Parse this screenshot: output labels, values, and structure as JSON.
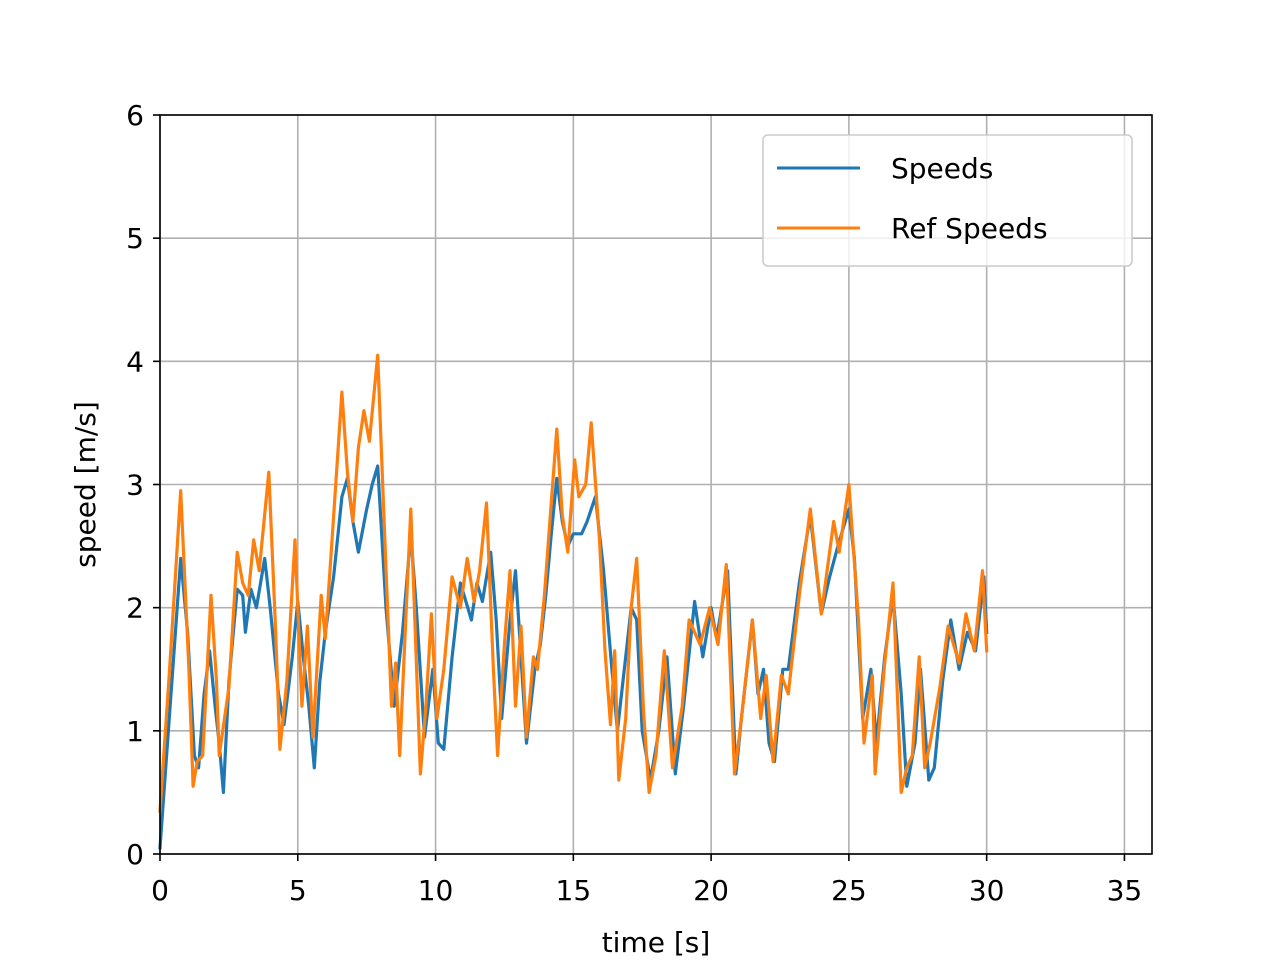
{
  "chart_data": {
    "type": "line",
    "title": "",
    "xlabel": "time [s]",
    "ylabel": "speed [m/s]",
    "xlim": [
      0,
      36
    ],
    "ylim": [
      0,
      6
    ],
    "xticks": [
      0,
      5,
      10,
      15,
      20,
      25,
      30,
      35
    ],
    "yticks": [
      0,
      1,
      2,
      3,
      4,
      5,
      6
    ],
    "xtick_labels": [
      "0",
      "5",
      "10",
      "15",
      "20",
      "25",
      "30",
      "35"
    ],
    "ytick_labels": [
      "0",
      "1",
      "2",
      "3",
      "4",
      "5",
      "6"
    ],
    "grid": true,
    "legend_position": "top-right",
    "series": [
      {
        "name": "Speeds",
        "color": "#1f77b4",
        "points": [
          [
            0,
            0.05
          ],
          [
            0.4,
            1.3
          ],
          [
            0.75,
            2.4
          ],
          [
            1.0,
            1.8
          ],
          [
            1.25,
            0.8
          ],
          [
            1.4,
            0.7
          ],
          [
            1.6,
            1.3
          ],
          [
            1.8,
            1.65
          ],
          [
            2.0,
            1.2
          ],
          [
            2.15,
            0.9
          ],
          [
            2.3,
            0.5
          ],
          [
            2.5,
            1.4
          ],
          [
            2.8,
            2.15
          ],
          [
            3.0,
            2.1
          ],
          [
            3.1,
            1.8
          ],
          [
            3.3,
            2.15
          ],
          [
            3.5,
            2.0
          ],
          [
            3.8,
            2.4
          ],
          [
            4.0,
            2.0
          ],
          [
            4.3,
            1.3
          ],
          [
            4.5,
            1.05
          ],
          [
            4.8,
            1.6
          ],
          [
            5.0,
            2.05
          ],
          [
            5.2,
            1.6
          ],
          [
            5.4,
            1.2
          ],
          [
            5.6,
            0.7
          ],
          [
            5.8,
            1.4
          ],
          [
            6.0,
            1.8
          ],
          [
            6.3,
            2.25
          ],
          [
            6.6,
            2.9
          ],
          [
            6.8,
            3.05
          ],
          [
            7.0,
            2.7
          ],
          [
            7.2,
            2.45
          ],
          [
            7.5,
            2.8
          ],
          [
            7.7,
            3.0
          ],
          [
            7.9,
            3.15
          ],
          [
            8.2,
            2.0
          ],
          [
            8.5,
            1.2
          ],
          [
            8.8,
            1.8
          ],
          [
            9.1,
            2.6
          ],
          [
            9.3,
            2.0
          ],
          [
            9.6,
            0.95
          ],
          [
            9.9,
            1.5
          ],
          [
            10.1,
            0.9
          ],
          [
            10.3,
            0.85
          ],
          [
            10.6,
            1.6
          ],
          [
            10.9,
            2.2
          ],
          [
            11.1,
            2.05
          ],
          [
            11.3,
            1.9
          ],
          [
            11.5,
            2.2
          ],
          [
            11.7,
            2.05
          ],
          [
            12.0,
            2.45
          ],
          [
            12.2,
            1.9
          ],
          [
            12.4,
            1.1
          ],
          [
            12.7,
            1.9
          ],
          [
            12.9,
            2.3
          ],
          [
            13.1,
            1.6
          ],
          [
            13.3,
            0.9
          ],
          [
            13.6,
            1.5
          ],
          [
            13.8,
            1.7
          ],
          [
            14.0,
            2.1
          ],
          [
            14.2,
            2.6
          ],
          [
            14.4,
            3.05
          ],
          [
            14.6,
            2.7
          ],
          [
            14.8,
            2.5
          ],
          [
            15.0,
            2.6
          ],
          [
            15.3,
            2.6
          ],
          [
            15.5,
            2.7
          ],
          [
            15.8,
            2.9
          ],
          [
            16.1,
            2.3
          ],
          [
            16.4,
            1.5
          ],
          [
            16.6,
            1.0
          ],
          [
            16.9,
            1.6
          ],
          [
            17.1,
            2.0
          ],
          [
            17.3,
            1.9
          ],
          [
            17.5,
            1.0
          ],
          [
            17.8,
            0.6
          ],
          [
            18.1,
            1.0
          ],
          [
            18.4,
            1.6
          ],
          [
            18.7,
            0.65
          ],
          [
            19.0,
            1.2
          ],
          [
            19.4,
            2.05
          ],
          [
            19.7,
            1.6
          ],
          [
            20.0,
            2.0
          ],
          [
            20.2,
            1.75
          ],
          [
            20.6,
            2.3
          ],
          [
            20.9,
            0.65
          ],
          [
            21.1,
            1.1
          ],
          [
            21.5,
            1.9
          ],
          [
            21.7,
            1.3
          ],
          [
            21.9,
            1.5
          ],
          [
            22.1,
            0.9
          ],
          [
            22.3,
            0.75
          ],
          [
            22.6,
            1.5
          ],
          [
            22.8,
            1.5
          ],
          [
            23.2,
            2.2
          ],
          [
            23.6,
            2.75
          ],
          [
            24.0,
            1.95
          ],
          [
            24.3,
            2.25
          ],
          [
            24.6,
            2.5
          ],
          [
            25.0,
            2.8
          ],
          [
            25.2,
            2.4
          ],
          [
            25.5,
            1.1
          ],
          [
            25.8,
            1.5
          ],
          [
            26.0,
            0.9
          ],
          [
            26.3,
            1.6
          ],
          [
            26.6,
            2.1
          ],
          [
            26.9,
            1.3
          ],
          [
            27.1,
            0.55
          ],
          [
            27.4,
            0.9
          ],
          [
            27.6,
            1.5
          ],
          [
            27.9,
            0.6
          ],
          [
            28.1,
            0.7
          ],
          [
            28.4,
            1.4
          ],
          [
            28.7,
            1.9
          ],
          [
            29.0,
            1.5
          ],
          [
            29.3,
            1.8
          ],
          [
            29.6,
            1.65
          ],
          [
            29.9,
            2.25
          ],
          [
            30.0,
            1.8
          ]
        ]
      },
      {
        "name": "Ref Speeds",
        "color": "#ff7f0e",
        "points": [
          [
            0,
            0.35
          ],
          [
            0.35,
            1.5
          ],
          [
            0.75,
            2.95
          ],
          [
            1.05,
            1.5
          ],
          [
            1.2,
            0.55
          ],
          [
            1.35,
            0.75
          ],
          [
            1.55,
            0.8
          ],
          [
            1.85,
            2.1
          ],
          [
            2.05,
            1.4
          ],
          [
            2.15,
            0.8
          ],
          [
            2.5,
            1.35
          ],
          [
            2.8,
            2.45
          ],
          [
            3.0,
            2.2
          ],
          [
            3.2,
            2.1
          ],
          [
            3.4,
            2.55
          ],
          [
            3.6,
            2.3
          ],
          [
            3.95,
            3.1
          ],
          [
            4.2,
            1.8
          ],
          [
            4.35,
            0.85
          ],
          [
            4.6,
            1.4
          ],
          [
            4.9,
            2.55
          ],
          [
            5.15,
            1.2
          ],
          [
            5.35,
            1.85
          ],
          [
            5.55,
            0.95
          ],
          [
            5.85,
            2.1
          ],
          [
            6.0,
            1.75
          ],
          [
            6.2,
            2.4
          ],
          [
            6.6,
            3.75
          ],
          [
            6.8,
            3.1
          ],
          [
            7.0,
            2.7
          ],
          [
            7.2,
            3.3
          ],
          [
            7.4,
            3.6
          ],
          [
            7.6,
            3.35
          ],
          [
            7.9,
            4.05
          ],
          [
            8.15,
            2.6
          ],
          [
            8.4,
            1.2
          ],
          [
            8.55,
            1.55
          ],
          [
            8.7,
            0.8
          ],
          [
            8.9,
            1.8
          ],
          [
            9.1,
            2.8
          ],
          [
            9.45,
            0.65
          ],
          [
            9.65,
            1.2
          ],
          [
            9.85,
            1.95
          ],
          [
            10.05,
            1.1
          ],
          [
            10.3,
            1.5
          ],
          [
            10.6,
            2.25
          ],
          [
            10.9,
            2.0
          ],
          [
            11.15,
            2.4
          ],
          [
            11.4,
            2.05
          ],
          [
            11.6,
            2.3
          ],
          [
            11.85,
            2.85
          ],
          [
            12.1,
            1.5
          ],
          [
            12.25,
            0.8
          ],
          [
            12.5,
            1.7
          ],
          [
            12.7,
            2.3
          ],
          [
            12.9,
            1.2
          ],
          [
            13.1,
            1.85
          ],
          [
            13.3,
            0.95
          ],
          [
            13.55,
            1.6
          ],
          [
            13.7,
            1.5
          ],
          [
            13.95,
            2.1
          ],
          [
            14.1,
            2.55
          ],
          [
            14.4,
            3.45
          ],
          [
            14.6,
            2.75
          ],
          [
            14.8,
            2.45
          ],
          [
            15.05,
            3.2
          ],
          [
            15.2,
            2.9
          ],
          [
            15.45,
            3.0
          ],
          [
            15.65,
            3.5
          ],
          [
            15.95,
            2.55
          ],
          [
            16.15,
            1.65
          ],
          [
            16.35,
            1.05
          ],
          [
            16.5,
            1.65
          ],
          [
            16.65,
            0.6
          ],
          [
            16.9,
            1.1
          ],
          [
            17.1,
            2.0
          ],
          [
            17.3,
            2.4
          ],
          [
            17.55,
            1.15
          ],
          [
            17.75,
            0.5
          ],
          [
            18.0,
            0.8
          ],
          [
            18.3,
            1.65
          ],
          [
            18.6,
            0.7
          ],
          [
            18.95,
            1.2
          ],
          [
            19.2,
            1.9
          ],
          [
            19.6,
            1.7
          ],
          [
            19.95,
            2.0
          ],
          [
            20.25,
            1.7
          ],
          [
            20.55,
            2.35
          ],
          [
            20.85,
            0.65
          ],
          [
            21.05,
            1.0
          ],
          [
            21.5,
            1.9
          ],
          [
            21.8,
            1.1
          ],
          [
            22.0,
            1.45
          ],
          [
            22.25,
            0.75
          ],
          [
            22.55,
            1.45
          ],
          [
            22.8,
            1.3
          ],
          [
            23.2,
            2.1
          ],
          [
            23.6,
            2.8
          ],
          [
            24.0,
            1.95
          ],
          [
            24.45,
            2.7
          ],
          [
            24.65,
            2.45
          ],
          [
            25.0,
            3.0
          ],
          [
            25.35,
            1.9
          ],
          [
            25.55,
            0.9
          ],
          [
            25.85,
            1.45
          ],
          [
            25.95,
            0.65
          ],
          [
            26.3,
            1.55
          ],
          [
            26.6,
            2.2
          ],
          [
            26.9,
            0.5
          ],
          [
            27.1,
            0.7
          ],
          [
            27.3,
            0.8
          ],
          [
            27.55,
            1.6
          ],
          [
            27.75,
            0.7
          ],
          [
            27.95,
            0.9
          ],
          [
            28.3,
            1.35
          ],
          [
            28.6,
            1.85
          ],
          [
            29.0,
            1.55
          ],
          [
            29.25,
            1.95
          ],
          [
            29.55,
            1.65
          ],
          [
            29.85,
            2.3
          ],
          [
            30.0,
            1.65
          ]
        ]
      }
    ]
  }
}
